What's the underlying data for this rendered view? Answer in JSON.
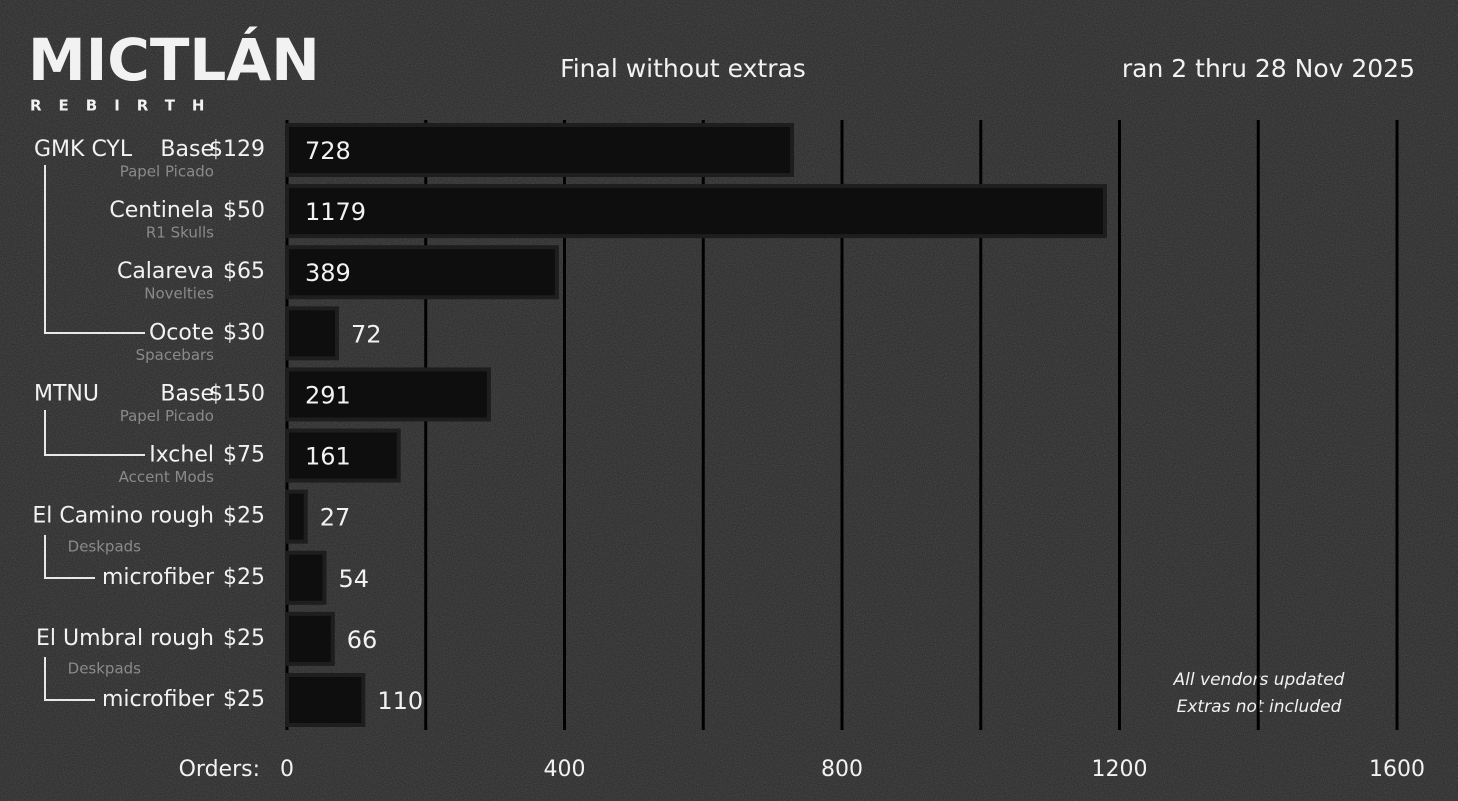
{
  "logo": {
    "title": "MICTLÁN",
    "subtitle": "REBIRTH"
  },
  "chart_data": {
    "type": "bar",
    "orientation": "horizontal",
    "title": "Final without extras",
    "subtitle": "ran 2 thru 28 Nov 2025",
    "x_label": "Orders:",
    "groups": [
      "GMK CYL",
      null,
      null,
      null,
      "MTNU",
      null,
      null,
      null,
      null,
      null
    ],
    "categories": [
      "Base",
      "Centinela",
      "Calareva",
      "Ocote",
      "Base",
      "Ixchel",
      "El Camino rough",
      "microfiber",
      "El Umbral rough",
      "microfiber"
    ],
    "prices": [
      "$129",
      "$50",
      "$65",
      "$30",
      "$150",
      "$75",
      "$25",
      "$25",
      "$25",
      "$25"
    ],
    "sublabels": [
      "Papel Picado",
      "R1 Skulls",
      "Novelties",
      "Spacebars",
      "Papel Picado",
      "Accent Mods",
      null,
      "Deskpads",
      null,
      "Deskpads"
    ],
    "values": [
      728,
      1179,
      389,
      72,
      291,
      161,
      27,
      54,
      66,
      110
    ],
    "label_colors": [
      "#d6338a",
      "#e8741c",
      "#e8a21c",
      "#1fa3a8",
      "#7b4fd6",
      "#d6338a",
      "#e8741c",
      "#e8a21c",
      "#1fa3a8",
      "#7b4fd6"
    ],
    "color": "#0e0e0e",
    "xlim": [
      0,
      1600
    ],
    "xticks": [
      0,
      400,
      800,
      1200,
      1600
    ],
    "grid_lines": [
      0,
      200,
      400,
      600,
      800,
      1000,
      1200,
      1400,
      1600
    ],
    "notes": [
      "All vendors updated",
      "Extras not included"
    ]
  }
}
